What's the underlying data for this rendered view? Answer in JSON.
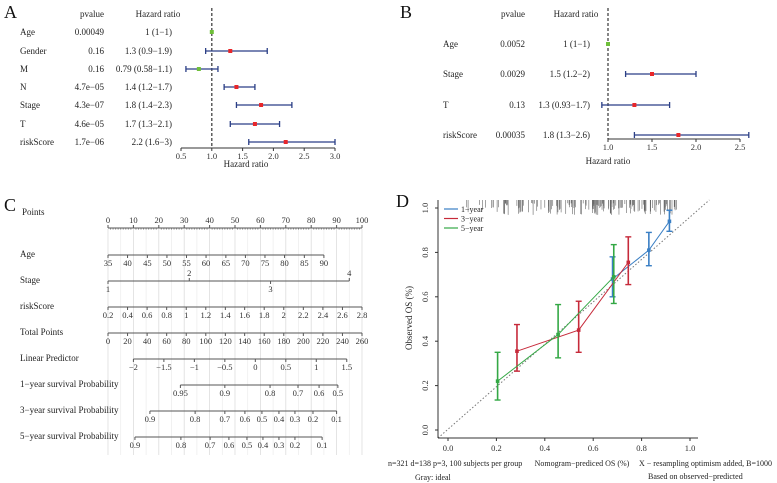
{
  "panels": {
    "a": "A",
    "b": "B",
    "c": "C",
    "d": "D"
  },
  "colors": {
    "ci": "#2b3f86",
    "hr_high": "#e8262a",
    "hr_low": "#6fbf3a",
    "one_year": "#3a7fc4",
    "three_year": "#c62a3a",
    "five_year": "#34a845",
    "ideal": "#777777"
  },
  "chart_data": [
    {
      "type": "forest",
      "panel": "A",
      "header_pvalue": "pvalue",
      "header_hr": "Hazard ratio",
      "xlabel": "Hazard ratio",
      "xlim": [
        0.5,
        3.0
      ],
      "ticks": [
        "0.5",
        "1.0",
        "1.5",
        "2.0",
        "2.5",
        "3.0"
      ],
      "ref_line": 1,
      "rows": [
        {
          "name": "Age",
          "pvalue": "0.00049",
          "hr_text": "1 (1−1)",
          "hr": 1.0,
          "lo": 1.0,
          "hi": 1.0
        },
        {
          "name": "Gender",
          "pvalue": "0.16",
          "hr_text": "1.3 (0.9−1.9)",
          "hr": 1.3,
          "lo": 0.9,
          "hi": 1.9
        },
        {
          "name": "M",
          "pvalue": "0.16",
          "hr_text": "0.79 (0.58−1.1)",
          "hr": 0.79,
          "lo": 0.58,
          "hi": 1.1
        },
        {
          "name": "N",
          "pvalue": "4.7e−05",
          "hr_text": "1.4 (1.2−1.7)",
          "hr": 1.4,
          "lo": 1.2,
          "hi": 1.7
        },
        {
          "name": "Stage",
          "pvalue": "4.3e−07",
          "hr_text": "1.8 (1.4−2.3)",
          "hr": 1.8,
          "lo": 1.4,
          "hi": 2.3
        },
        {
          "name": "T",
          "pvalue": "4.6e−05",
          "hr_text": "1.7 (1.3−2.1)",
          "hr": 1.7,
          "lo": 1.3,
          "hi": 2.1
        },
        {
          "name": "riskScore",
          "pvalue": "1.7e−06",
          "hr_text": "2.2 (1.6−3)",
          "hr": 2.2,
          "lo": 1.6,
          "hi": 3.0
        }
      ]
    },
    {
      "type": "forest",
      "panel": "B",
      "header_pvalue": "pvalue",
      "header_hr": "Hazard ratio",
      "xlabel": "Hazard ratio",
      "xlim": [
        1.0,
        2.5
      ],
      "ticks": [
        "1.0",
        "1.5",
        "2.0",
        "2.5"
      ],
      "ref_line": 1,
      "rows": [
        {
          "name": "Age",
          "pvalue": "0.0052",
          "hr_text": "1 (1−1)",
          "hr": 1.0,
          "lo": 1.0,
          "hi": 1.0
        },
        {
          "name": "Stage",
          "pvalue": "0.0029",
          "hr_text": "1.5 (1.2−2)",
          "hr": 1.5,
          "lo": 1.2,
          "hi": 2.0
        },
        {
          "name": "T",
          "pvalue": "0.13",
          "hr_text": "1.3 (0.93−1.7)",
          "hr": 1.3,
          "lo": 0.93,
          "hi": 1.7
        },
        {
          "name": "riskScore",
          "pvalue": "0.00035",
          "hr_text": "1.8 (1.3−2.6)",
          "hr": 1.8,
          "lo": 1.3,
          "hi": 2.6
        }
      ]
    },
    {
      "type": "nomogram",
      "panel": "C",
      "points_range": [
        0,
        100
      ],
      "scales": [
        {
          "name": "Points",
          "ticks": [
            [
              "0",
              0
            ],
            [
              "10",
              10
            ],
            [
              "20",
              20
            ],
            [
              "30",
              30
            ],
            [
              "40",
              40
            ],
            [
              "50",
              50
            ],
            [
              "60",
              60
            ],
            [
              "70",
              70
            ],
            [
              "80",
              80
            ],
            [
              "90",
              90
            ],
            [
              "100",
              100
            ]
          ]
        },
        {
          "name": "Age",
          "ticks": [
            [
              "35",
              0
            ],
            [
              "40",
              7.7
            ],
            [
              "45",
              15.5
            ],
            [
              "50",
              23.2
            ],
            [
              "55",
              30.9
            ],
            [
              "60",
              38.6
            ],
            [
              "65",
              46.4
            ],
            [
              "70",
              54.1
            ],
            [
              "75",
              61.8
            ],
            [
              "80",
              69.5
            ],
            [
              "85",
              77.3
            ],
            [
              "90",
              85
            ]
          ]
        },
        {
          "name": "Stage",
          "ticks": [
            [
              "1",
              0
            ],
            [
              "2",
              32
            ],
            [
              "3",
              64
            ],
            [
              "4",
              95
            ]
          ],
          "above": [
            "2",
            "4"
          ]
        },
        {
          "name": "riskScore",
          "ticks": [
            [
              "0.2",
              0
            ],
            [
              "0.4",
              7.7
            ],
            [
              "0.6",
              15.4
            ],
            [
              "0.8",
              23.1
            ],
            [
              "1",
              30.8
            ],
            [
              "1.2",
              38.5
            ],
            [
              "1.4",
              46.2
            ],
            [
              "1.6",
              53.8
            ],
            [
              "1.8",
              61.5
            ],
            [
              "2",
              69.2
            ],
            [
              "2.2",
              76.9
            ],
            [
              "2.4",
              84.6
            ],
            [
              "2.6",
              92.3
            ],
            [
              "2.8",
              100
            ]
          ]
        },
        {
          "name": "Total Points",
          "ticks": [
            [
              "0",
              0
            ],
            [
              "20",
              7.7
            ],
            [
              "40",
              15.4
            ],
            [
              "60",
              23.1
            ],
            [
              "80",
              30.8
            ],
            [
              "100",
              38.5
            ],
            [
              "120",
              46.2
            ],
            [
              "140",
              53.8
            ],
            [
              "160",
              61.5
            ],
            [
              "180",
              69.2
            ],
            [
              "200",
              76.9
            ],
            [
              "220",
              84.6
            ],
            [
              "240",
              92.3
            ],
            [
              "260",
              100
            ]
          ]
        },
        {
          "name": "Linear Predictor",
          "ticks": [
            [
              "−2",
              10
            ],
            [
              "−1.5",
              22
            ],
            [
              "−1",
              34
            ],
            [
              "−0.5",
              46
            ],
            [
              "0",
              58
            ],
            [
              "0.5",
              70
            ],
            [
              "1",
              82
            ],
            [
              "1.5",
              94
            ]
          ]
        },
        {
          "name": "1−year survival Probability",
          "ticks": [
            [
              "0.95",
              28.5
            ],
            [
              "0.9",
              46
            ],
            [
              "0.8",
              63.8
            ],
            [
              "0.7",
              74.8
            ],
            [
              "0.6",
              83.1
            ],
            [
              "0.5",
              90.5
            ]
          ]
        },
        {
          "name": "3−year survival Probability",
          "ticks": [
            [
              "0.9",
              16.5
            ],
            [
              "0.8",
              34.3
            ],
            [
              "0.7",
              46
            ],
            [
              "0.6",
              53.9
            ],
            [
              "0.5",
              60.6
            ],
            [
              "0.4",
              67.3
            ],
            [
              "0.3",
              73.6
            ],
            [
              "0.2",
              80.7
            ],
            [
              "0.1",
              90
            ]
          ]
        },
        {
          "name": "5−year survival Probability",
          "ticks": [
            [
              "0.9",
              10.6
            ],
            [
              "0.8",
              28.7
            ],
            [
              "0.7",
              40.2
            ],
            [
              "0.6",
              47.6
            ],
            [
              "0.5",
              54.7
            ],
            [
              "0.4",
              61
            ],
            [
              "0.3",
              67.3
            ],
            [
              "0.2",
              73.6
            ],
            [
              "0.1",
              84.3
            ]
          ]
        }
      ]
    },
    {
      "type": "line",
      "panel": "D",
      "xlabel": "Nomogram−prediced OS (%)",
      "ylabel": "Observed OS (%)",
      "xlim": [
        0,
        1
      ],
      "ylim": [
        0,
        1
      ],
      "xticks": [
        "0.0",
        "0.2",
        "0.4",
        "0.6",
        "0.8",
        "1.0"
      ],
      "yticks": [
        "0.0",
        "0.2",
        "0.4",
        "0.6",
        "0.8",
        "1.0"
      ],
      "legend": {
        "position": "top-left",
        "entries": [
          "1−year",
          "3−year",
          "5−year"
        ]
      },
      "series": [
        {
          "name": "1−year",
          "points": [
            [
              0.68,
              0.68,
              0.6,
              0.78
            ],
            [
              0.83,
              0.81,
              0.74,
              0.89
            ],
            [
              0.915,
              0.94,
              0.895,
              0.99
            ]
          ]
        },
        {
          "name": "3−year",
          "points": [
            [
              0.285,
              0.355,
              0.265,
              0.475
            ],
            [
              0.54,
              0.45,
              0.35,
              0.58
            ],
            [
              0.745,
              0.755,
              0.655,
              0.87
            ]
          ]
        },
        {
          "name": "5−year",
          "points": [
            [
              0.205,
              0.22,
              0.135,
              0.35
            ],
            [
              0.455,
              0.43,
              0.325,
              0.565
            ],
            [
              0.685,
              0.69,
              0.57,
              0.835
            ]
          ]
        }
      ],
      "notes": {
        "left1": "n=321 d=138 p=3, 100 subjects per group",
        "left2": "Gray: ideal",
        "right1": "X − resampling optimism added, B=1000",
        "right2": "Based on observed−predicted"
      }
    }
  ]
}
